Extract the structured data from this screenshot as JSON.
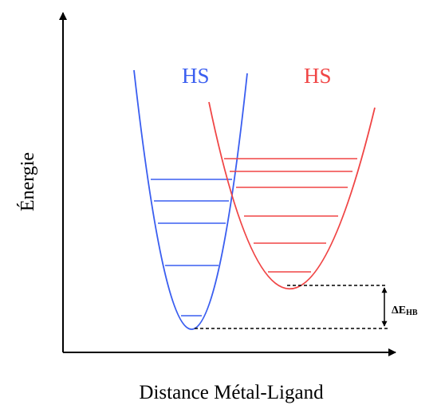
{
  "labels": {
    "y_axis": "Énergie",
    "x_axis": "Distance Métal-Ligand",
    "left_well": "HS",
    "right_well": "HS",
    "delta_symbol": "ΔE",
    "delta_subscript": "HB"
  },
  "colors": {
    "left_well": "#3a5ef0",
    "right_well": "#f04545",
    "axis": "#000000",
    "text": "#000000"
  },
  "wells": {
    "left_level_count": 5,
    "right_level_count": 6
  }
}
